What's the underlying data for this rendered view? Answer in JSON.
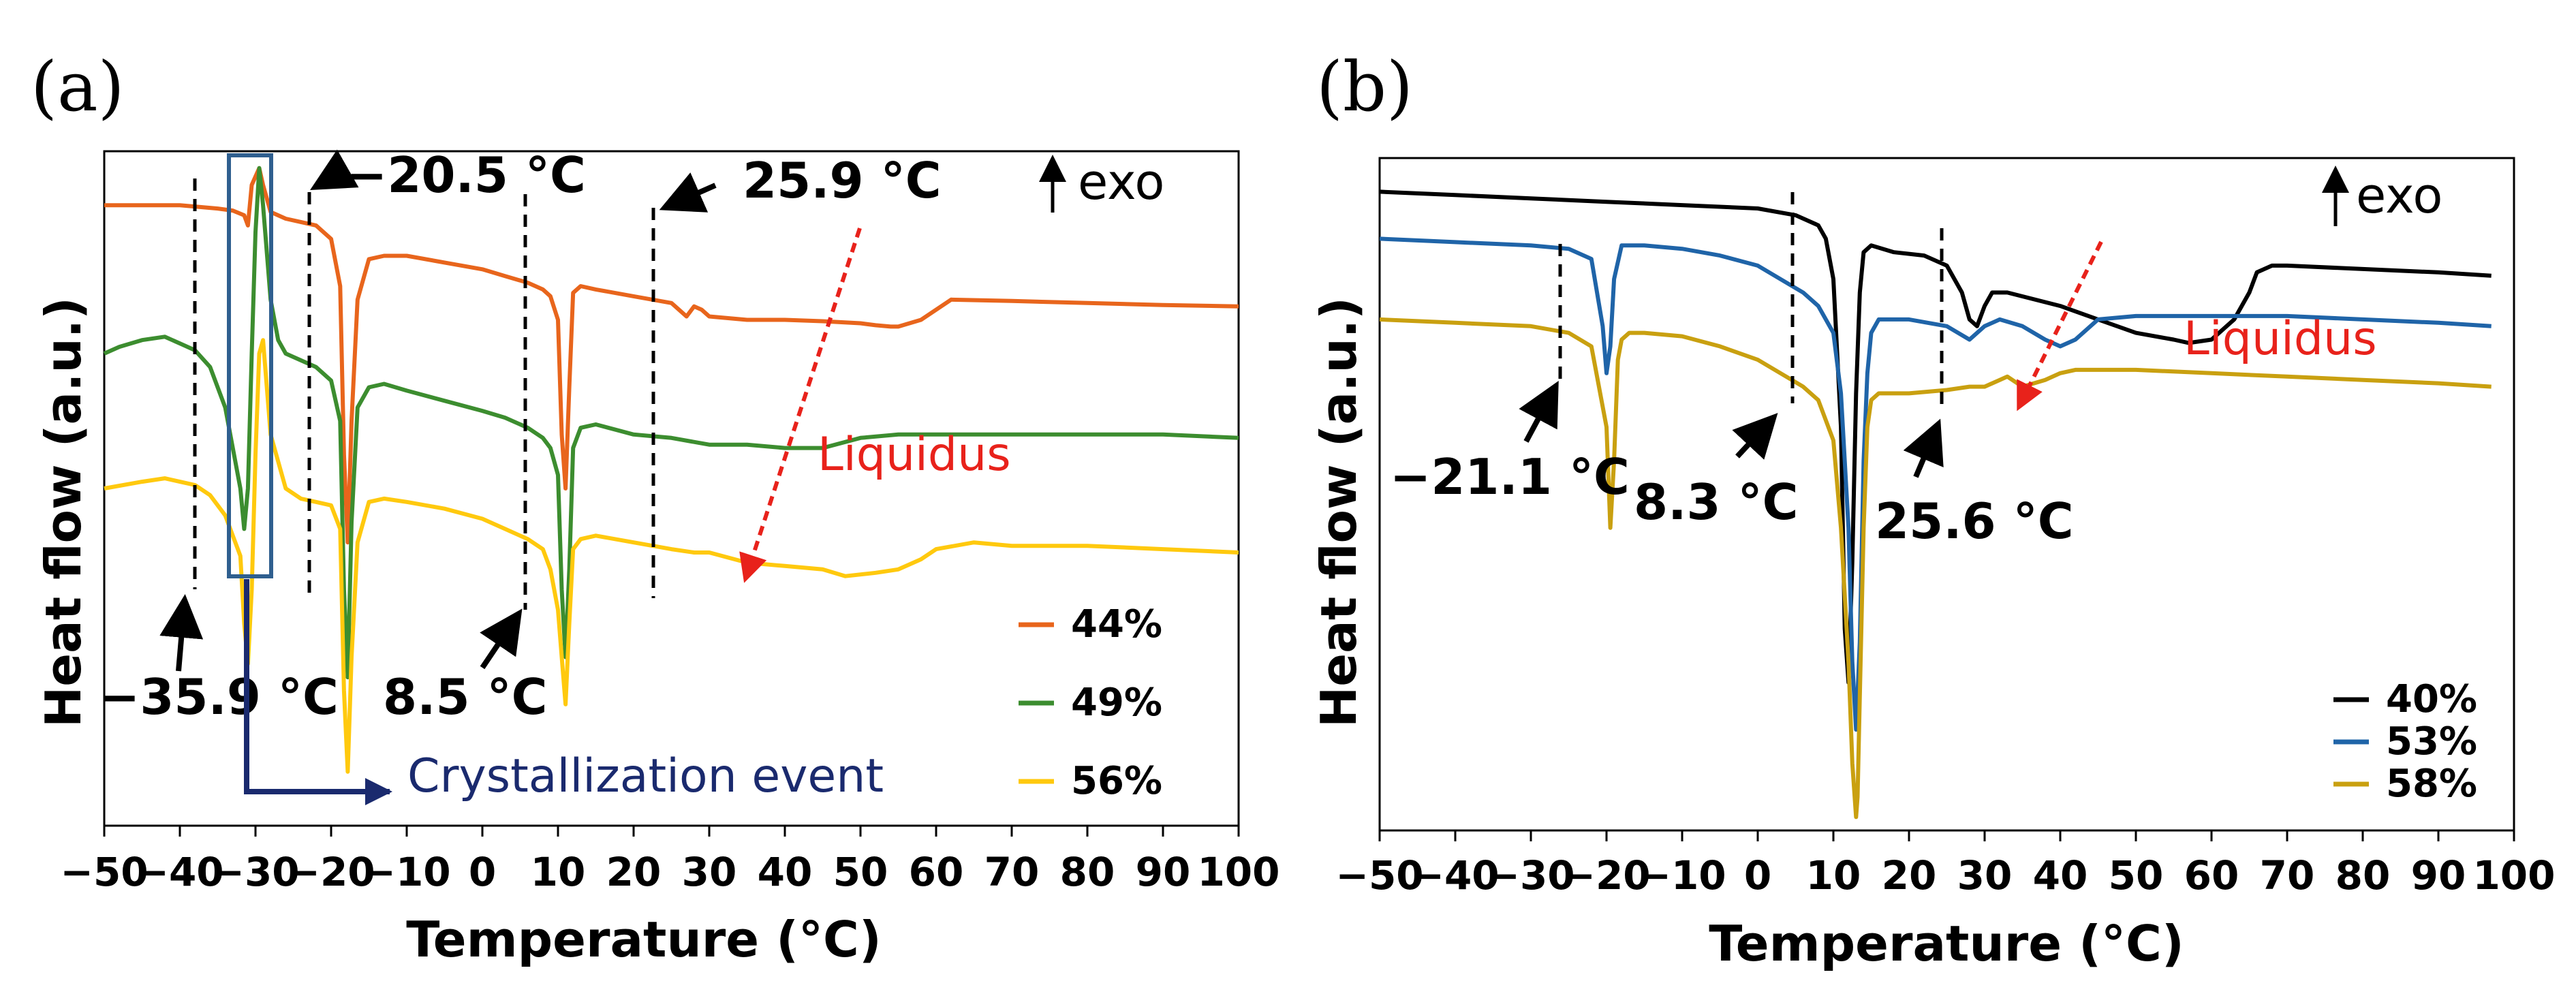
{
  "chart_data": [
    {
      "panel": "(a)",
      "type": "line",
      "xlabel": "Temperature (°C)",
      "ylabel": "Heat flow (a.u.)",
      "xlim": [
        -50,
        100
      ],
      "ylim": [
        0,
        100
      ],
      "xticks": [
        -50,
        -40,
        -30,
        -20,
        -10,
        0,
        10,
        20,
        30,
        40,
        50,
        60,
        70,
        80,
        90,
        100
      ],
      "exo_label": "exo",
      "liquidus_label": "Liquidus",
      "crystallization_label": "Crystallization event",
      "legend_position": "bottom-right",
      "series": [
        {
          "name": "44%",
          "color": "#e8651c",
          "x": [
            -50,
            -40,
            -35,
            -33,
            -31.5,
            -31,
            -30.5,
            -29.5,
            -29,
            -28,
            -26,
            -24,
            -22,
            -20,
            -18.8,
            -18.3,
            -17.8,
            -17.3,
            -16.5,
            -15,
            -13,
            -10,
            -5,
            0,
            3,
            6,
            8,
            9,
            10,
            10.5,
            11,
            11.5,
            12,
            13,
            15,
            20,
            25,
            27,
            28,
            29,
            30,
            35,
            40,
            45,
            50,
            52,
            54,
            55,
            58,
            60,
            62,
            70,
            80,
            90,
            100
          ],
          "y": [
            92,
            92,
            91.5,
            91.2,
            90.5,
            89,
            95,
            97.5,
            95,
            91,
            90,
            89.5,
            89,
            87,
            80,
            55,
            42,
            60,
            78,
            84,
            84.5,
            84.5,
            83.5,
            82.5,
            81.5,
            80.5,
            79.5,
            78.5,
            75,
            58,
            50,
            65,
            79,
            80,
            79.5,
            78.5,
            77.5,
            75.5,
            77,
            76.5,
            75.5,
            75,
            75,
            74.8,
            74.5,
            74.2,
            74,
            74,
            75,
            76.5,
            78,
            77.8,
            77.5,
            77.2,
            77
          ]
        },
        {
          "name": "49%",
          "color": "#3c8d2f",
          "x": [
            -50,
            -48,
            -45,
            -42,
            -40,
            -38,
            -36,
            -34,
            -32,
            -31.5,
            -31,
            -30.5,
            -30,
            -29.5,
            -29,
            -28,
            -27,
            -26,
            -24,
            -22,
            -20,
            -18.8,
            -18.3,
            -17.8,
            -17.3,
            -16.5,
            -15,
            -13,
            -10,
            -5,
            0,
            3,
            6,
            8,
            9,
            10,
            10.5,
            11,
            11.5,
            12,
            13,
            15,
            20,
            25,
            30,
            35,
            40,
            45,
            50,
            55,
            60,
            70,
            80,
            90,
            100
          ],
          "y": [
            70,
            71,
            72,
            72.5,
            71.5,
            70.5,
            68,
            62,
            50,
            44,
            50,
            70,
            88,
            97.5,
            92,
            78,
            72,
            70,
            69,
            68,
            66,
            60,
            35,
            22,
            45,
            62,
            65,
            65.5,
            64.5,
            63,
            61.5,
            60.5,
            59,
            57.5,
            56,
            52,
            35,
            25,
            38,
            56,
            59,
            59.5,
            58,
            57.5,
            56.5,
            56.5,
            56,
            56,
            57.5,
            58,
            58,
            58,
            58,
            58,
            57.5
          ]
        },
        {
          "name": "56%",
          "color": "#ffc90e",
          "x": [
            -50,
            -45,
            -42,
            -40,
            -38,
            -36,
            -34,
            -32,
            -31.5,
            -31,
            -30.5,
            -30,
            -29.5,
            -29,
            -28,
            -26,
            -24,
            -22,
            -20,
            -18.8,
            -18.3,
            -17.8,
            -17.3,
            -16.5,
            -15,
            -13,
            -10,
            -5,
            0,
            3,
            6,
            8,
            9,
            10,
            10.5,
            11,
            11.5,
            12,
            13,
            15,
            20,
            25,
            28,
            30,
            35,
            40,
            45,
            48,
            52,
            55,
            58,
            60,
            65,
            70,
            80,
            90,
            100
          ],
          "y": [
            50,
            51,
            51.5,
            51,
            50.5,
            49,
            46,
            40,
            30,
            24,
            35,
            55,
            70,
            72,
            58,
            50,
            48.5,
            48,
            47.5,
            44,
            20,
            8,
            25,
            42,
            48,
            48.5,
            48,
            47,
            45.5,
            44,
            42.5,
            41,
            38,
            32,
            25,
            18,
            30,
            41,
            42.5,
            43,
            42,
            41,
            40.5,
            40.5,
            39,
            38.5,
            38,
            37,
            37.5,
            38,
            39.5,
            41,
            42,
            41.5,
            41.5,
            41,
            40.5
          ]
        }
      ],
      "annotations": {
        "temps": [
          "−20.5 °C",
          "25.9 °C",
          "−35.9 °C",
          "8.5 °C"
        ]
      }
    },
    {
      "panel": "(b)",
      "type": "line",
      "xlabel": "Temperature (°C)",
      "ylabel": "Heat flow (a.u.)",
      "xlim": [
        -50,
        100
      ],
      "ylim": [
        0,
        100
      ],
      "xticks": [
        -50,
        -40,
        -30,
        -20,
        -10,
        0,
        10,
        20,
        30,
        40,
        50,
        60,
        70,
        80,
        90,
        100
      ],
      "exo_label": "exo",
      "liquidus_label": "Liquidus",
      "legend_position": "bottom-right",
      "series": [
        {
          "name": "40%",
          "color": "#000000",
          "x": [
            -50,
            -40,
            -30,
            -20,
            -10,
            0,
            5,
            8,
            9,
            10,
            11,
            11.5,
            12,
            12.5,
            13,
            13.5,
            14,
            15,
            18,
            22,
            25,
            27,
            28,
            29,
            30,
            31,
            33,
            40,
            45,
            50,
            55,
            57,
            60,
            63,
            65,
            66,
            68,
            70,
            80,
            90,
            97
          ],
          "y": [
            95,
            94.5,
            94,
            93.5,
            93,
            92.5,
            91.5,
            90,
            88,
            82,
            60,
            30,
            22,
            40,
            65,
            80,
            86,
            87,
            86,
            85.5,
            84,
            80,
            76,
            75,
            78,
            80,
            80,
            78,
            76,
            74,
            73,
            72.5,
            73,
            76,
            80,
            83,
            84,
            84,
            83.5,
            83,
            82.5
          ]
        },
        {
          "name": "53%",
          "color": "#1f64a8",
          "x": [
            -50,
            -40,
            -30,
            -25,
            -22,
            -20.5,
            -20,
            -19.5,
            -19,
            -18,
            -15,
            -10,
            -5,
            0,
            3,
            6,
            8,
            10,
            11,
            12,
            12.5,
            13,
            13.5,
            14,
            14.5,
            15,
            16,
            20,
            25,
            28,
            30,
            32,
            35,
            38,
            40,
            42,
            45,
            50,
            55,
            60,
            70,
            80,
            90,
            97
          ],
          "y": [
            88,
            87.5,
            87,
            86.5,
            85,
            75,
            68,
            72,
            82,
            87,
            87,
            86.5,
            85.5,
            84,
            82,
            80,
            78,
            74,
            65,
            45,
            25,
            15,
            28,
            55,
            68,
            74,
            76,
            76,
            75,
            73,
            75,
            76,
            75,
            73,
            72,
            73,
            76,
            76.5,
            76.5,
            76.5,
            76.5,
            76,
            75.5,
            75
          ]
        },
        {
          "name": "58%",
          "color": "#c9a010",
          "x": [
            -50,
            -40,
            -30,
            -25,
            -22,
            -20,
            -19.5,
            -19,
            -18.5,
            -18,
            -17,
            -15,
            -10,
            -5,
            0,
            3,
            6,
            8,
            10,
            11,
            12,
            12.5,
            13,
            13.2,
            13.5,
            14,
            14.5,
            15,
            16,
            20,
            25,
            28,
            30,
            32,
            33,
            35,
            38,
            40,
            42,
            45,
            50,
            60,
            70,
            80,
            90,
            97
          ],
          "y": [
            76,
            75.5,
            75,
            74,
            72,
            60,
            45,
            55,
            70,
            73,
            74,
            74,
            73.5,
            72,
            70,
            68,
            66,
            64,
            58,
            45,
            25,
            10,
            2,
            5,
            20,
            45,
            60,
            64,
            65,
            65,
            65.5,
            66,
            66,
            67,
            67.5,
            66,
            67,
            68,
            68.5,
            68.5,
            68.5,
            68,
            67.5,
            67,
            66.5,
            66
          ]
        }
      ],
      "annotations": {
        "temps": [
          "−21.1 °C",
          "8.3 °C",
          "25.6 °C"
        ]
      }
    }
  ]
}
